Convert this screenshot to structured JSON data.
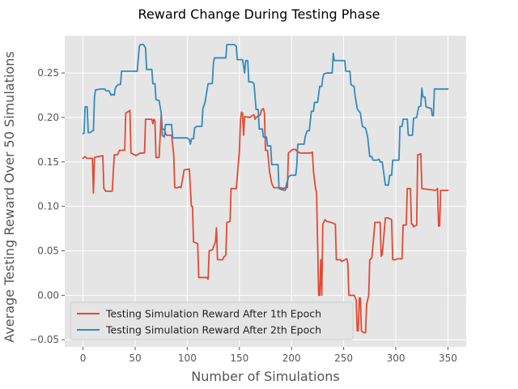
{
  "chart_data": {
    "type": "line",
    "title": "Reward Change During Testing Phase",
    "xlabel": "Number of Simulations",
    "ylabel": "Average Testing Reward Over 50 Simulations",
    "xlim": [
      -17.5,
      367.5
    ],
    "ylim": [
      -0.058,
      0.292
    ],
    "xticks": [
      0,
      50,
      100,
      150,
      200,
      250,
      300,
      350
    ],
    "yticks": [
      -0.05,
      0.0,
      0.05,
      0.1,
      0.15,
      0.2,
      0.25
    ],
    "ytick_labels": [
      "−0.05",
      "0.00",
      "0.05",
      "0.10",
      "0.15",
      "0.20",
      "0.25"
    ],
    "grid": true,
    "background": "#e5e5e5",
    "legend_position": "lower-left",
    "series": [
      {
        "name": "Testing Simulation Reward After 1th Epoch",
        "color": "#e24a33",
        "points": [
          [
            0,
            0.154
          ],
          [
            2,
            0.156
          ],
          [
            4,
            0.154
          ],
          [
            9,
            0.154
          ],
          [
            10,
            0.115
          ],
          [
            11,
            0.155
          ],
          [
            14,
            0.156
          ],
          [
            19,
            0.157
          ],
          [
            20,
            0.12
          ],
          [
            22,
            0.117
          ],
          [
            28,
            0.117
          ],
          [
            30,
            0.158
          ],
          [
            33,
            0.158
          ],
          [
            35,
            0.163
          ],
          [
            40,
            0.163
          ],
          [
            41,
            0.205
          ],
          [
            44,
            0.207
          ],
          [
            45,
            0.208
          ],
          [
            46,
            0.16
          ],
          [
            51,
            0.157
          ],
          [
            52,
            0.158
          ],
          [
            55,
            0.16
          ],
          [
            59,
            0.16
          ],
          [
            60,
            0.198
          ],
          [
            66,
            0.198
          ],
          [
            67,
            0.193
          ],
          [
            68,
            0.198
          ],
          [
            69,
            0.196
          ],
          [
            70,
            0.155
          ],
          [
            73,
            0.155
          ],
          [
            75,
            0.203
          ],
          [
            76,
            0.188
          ],
          [
            78,
            0.186
          ],
          [
            80,
            0.18
          ],
          [
            85,
            0.18
          ],
          [
            87,
            0.158
          ],
          [
            88,
            0.121
          ],
          [
            91,
            0.121
          ],
          [
            92,
            0.122
          ],
          [
            94,
            0.121
          ],
          [
            97,
            0.141
          ],
          [
            102,
            0.142
          ],
          [
            103,
            0.12
          ],
          [
            104,
            0.1
          ],
          [
            105,
            0.1
          ],
          [
            106,
            0.06
          ],
          [
            110,
            0.058
          ],
          [
            111,
            0.02
          ],
          [
            113,
            0.02
          ],
          [
            119,
            0.02
          ],
          [
            120,
            0.018
          ],
          [
            121,
            0.05
          ],
          [
            124,
            0.051
          ],
          [
            127,
            0.06
          ],
          [
            128,
            0.076
          ],
          [
            129,
            0.04
          ],
          [
            134,
            0.04
          ],
          [
            135,
            0.043
          ],
          [
            137,
            0.045
          ],
          [
            138,
            0.082
          ],
          [
            141,
            0.083
          ],
          [
            142,
            0.12
          ],
          [
            147,
            0.12
          ],
          [
            150,
            0.162
          ],
          [
            151,
            0.197
          ],
          [
            152,
            0.206
          ],
          [
            153,
            0.205
          ],
          [
            154,
            0.18
          ],
          [
            155,
            0.201
          ],
          [
            160,
            0.2
          ],
          [
            161,
            0.201
          ],
          [
            164,
            0.203
          ],
          [
            165,
            0.198
          ],
          [
            166,
            0.2
          ],
          [
            170,
            0.203
          ],
          [
            171,
            0.208
          ],
          [
            173,
            0.21
          ],
          [
            174,
            0.205
          ],
          [
            175,
            0.163
          ],
          [
            177,
            0.163
          ],
          [
            179,
            0.138
          ],
          [
            181,
            0.126
          ],
          [
            183,
            0.121
          ],
          [
            190,
            0.121
          ],
          [
            192,
            0.12
          ],
          [
            194,
            0.121
          ],
          [
            196,
            0.121
          ],
          [
            197,
            0.16
          ],
          [
            199,
            0.162
          ],
          [
            201,
            0.164
          ],
          [
            204,
            0.164
          ],
          [
            205,
            0.162
          ],
          [
            208,
            0.16
          ],
          [
            218,
            0.16
          ],
          [
            220,
            0.161
          ],
          [
            221,
            0.14
          ],
          [
            223,
            0.12
          ],
          [
            224,
            0.116
          ],
          [
            226,
            0.0
          ],
          [
            227,
            0.0
          ],
          [
            228,
            0.04
          ],
          [
            229,
            0.0
          ],
          [
            230,
            0.08
          ],
          [
            232,
            0.085
          ],
          [
            234,
            0.083
          ],
          [
            238,
            0.082
          ],
          [
            242,
            0.08
          ],
          [
            243,
            0.04
          ],
          [
            247,
            0.04
          ],
          [
            248,
            0.038
          ],
          [
            251,
            0.04
          ],
          [
            253,
            0.041
          ],
          [
            254,
            0.036
          ],
          [
            255,
            0.0
          ],
          [
            259,
            0.0
          ],
          [
            260,
            0.0
          ],
          [
            262,
            -0.005
          ],
          [
            263,
            -0.04
          ],
          [
            264,
            -0.04
          ],
          [
            265,
            -0.003
          ],
          [
            266,
            -0.003
          ],
          [
            267,
            -0.04
          ],
          [
            269,
            -0.042
          ],
          [
            271,
            -0.042
          ],
          [
            272,
            -0.01
          ],
          [
            274,
            0.0
          ],
          [
            275,
            0.04
          ],
          [
            277,
            0.042
          ],
          [
            280,
            0.082
          ],
          [
            285,
            0.082
          ],
          [
            286,
            0.044
          ],
          [
            287,
            0.046
          ],
          [
            290,
            0.087
          ],
          [
            293,
            0.087
          ],
          [
            296,
            0.085
          ],
          [
            297,
            0.04
          ],
          [
            300,
            0.04
          ],
          [
            301,
            0.041
          ],
          [
            306,
            0.041
          ],
          [
            307,
            0.079
          ],
          [
            310,
            0.079
          ],
          [
            311,
            0.12
          ],
          [
            314,
            0.12
          ],
          [
            315,
            0.08
          ],
          [
            316,
            0.08
          ],
          [
            317,
            0.077
          ],
          [
            320,
            0.079
          ],
          [
            321,
            0.158
          ],
          [
            324,
            0.159
          ],
          [
            325,
            0.12
          ],
          [
            338,
            0.118
          ],
          [
            340,
            0.12
          ],
          [
            341,
            0.078
          ],
          [
            342,
            0.078
          ],
          [
            343,
            0.118
          ],
          [
            350,
            0.118
          ]
        ]
      },
      {
        "name": "Testing Simulation Reward After 2th Epoch",
        "color": "#348abd",
        "points": [
          [
            0,
            0.182
          ],
          [
            1,
            0.182
          ],
          [
            2,
            0.212
          ],
          [
            4,
            0.212
          ],
          [
            5,
            0.183
          ],
          [
            7,
            0.183
          ],
          [
            9,
            0.185
          ],
          [
            10,
            0.185
          ],
          [
            11,
            0.223
          ],
          [
            12,
            0.231
          ],
          [
            17,
            0.232
          ],
          [
            21,
            0.232
          ],
          [
            22,
            0.23
          ],
          [
            25,
            0.23
          ],
          [
            27,
            0.225
          ],
          [
            28,
            0.226
          ],
          [
            30,
            0.225
          ],
          [
            31,
            0.233
          ],
          [
            32,
            0.235
          ],
          [
            34,
            0.237
          ],
          [
            36,
            0.237
          ],
          [
            37,
            0.252
          ],
          [
            44,
            0.252
          ],
          [
            51,
            0.252
          ],
          [
            52,
            0.252
          ],
          [
            54,
            0.28
          ],
          [
            55,
            0.282
          ],
          [
            58,
            0.282
          ],
          [
            59,
            0.28
          ],
          [
            60,
            0.278
          ],
          [
            61,
            0.254
          ],
          [
            66,
            0.254
          ],
          [
            67,
            0.238
          ],
          [
            69,
            0.238
          ],
          [
            70,
            0.22
          ],
          [
            73,
            0.219
          ],
          [
            75,
            0.205
          ],
          [
            76,
            0.18
          ],
          [
            78,
            0.178
          ],
          [
            79,
            0.192
          ],
          [
            85,
            0.192
          ],
          [
            86,
            0.177
          ],
          [
            100,
            0.177
          ],
          [
            102,
            0.175
          ],
          [
            103,
            0.17
          ],
          [
            104,
            0.176
          ],
          [
            106,
            0.176
          ],
          [
            107,
            0.188
          ],
          [
            109,
            0.19
          ],
          [
            114,
            0.19
          ],
          [
            115,
            0.21
          ],
          [
            117,
            0.217
          ],
          [
            120,
            0.238
          ],
          [
            124,
            0.238
          ],
          [
            125,
            0.26
          ],
          [
            126,
            0.267
          ],
          [
            130,
            0.267
          ],
          [
            137,
            0.267
          ],
          [
            138,
            0.282
          ],
          [
            145,
            0.282
          ],
          [
            147,
            0.28
          ],
          [
            148,
            0.265
          ],
          [
            150,
            0.265
          ],
          [
            153,
            0.265
          ],
          [
            155,
            0.25
          ],
          [
            156,
            0.264
          ],
          [
            158,
            0.264
          ],
          [
            159,
            0.24
          ],
          [
            162,
            0.24
          ],
          [
            164,
            0.238
          ],
          [
            166,
            0.209
          ],
          [
            168,
            0.209
          ],
          [
            169,
            0.187
          ],
          [
            172,
            0.187
          ],
          [
            173,
            0.178
          ],
          [
            176,
            0.178
          ],
          [
            177,
            0.168
          ],
          [
            180,
            0.168
          ],
          [
            181,
            0.147
          ],
          [
            184,
            0.147
          ],
          [
            187,
            0.147
          ],
          [
            188,
            0.12
          ],
          [
            190,
            0.119
          ],
          [
            194,
            0.118
          ],
          [
            195,
            0.124
          ],
          [
            197,
            0.133
          ],
          [
            199,
            0.135
          ],
          [
            204,
            0.135
          ],
          [
            205,
            0.145
          ],
          [
            206,
            0.17
          ],
          [
            212,
            0.17
          ],
          [
            213,
            0.178
          ],
          [
            215,
            0.185
          ],
          [
            217,
            0.185
          ],
          [
            219,
            0.207
          ],
          [
            221,
            0.207
          ],
          [
            222,
            0.217
          ],
          [
            225,
            0.217
          ],
          [
            227,
            0.235
          ],
          [
            229,
            0.235
          ],
          [
            230,
            0.245
          ],
          [
            231,
            0.249
          ],
          [
            234,
            0.25
          ],
          [
            239,
            0.25
          ],
          [
            240,
            0.272
          ],
          [
            241,
            0.264
          ],
          [
            247,
            0.264
          ],
          [
            250,
            0.264
          ],
          [
            251,
            0.264
          ],
          [
            252,
            0.252
          ],
          [
            256,
            0.252
          ],
          [
            257,
            0.237
          ],
          [
            258,
            0.236
          ],
          [
            260,
            0.235
          ],
          [
            261,
            0.224
          ],
          [
            262,
            0.217
          ],
          [
            263,
            0.21
          ],
          [
            264,
            0.208
          ],
          [
            266,
            0.205
          ],
          [
            267,
            0.197
          ],
          [
            268,
            0.19
          ],
          [
            271,
            0.188
          ],
          [
            273,
            0.178
          ],
          [
            274,
            0.167
          ],
          [
            275,
            0.156
          ],
          [
            277,
            0.156
          ],
          [
            278,
            0.152
          ],
          [
            282,
            0.152
          ],
          [
            284,
            0.153
          ],
          [
            285,
            0.15
          ],
          [
            287,
            0.15
          ],
          [
            290,
            0.124
          ],
          [
            293,
            0.124
          ],
          [
            294,
            0.135
          ],
          [
            296,
            0.135
          ],
          [
            297,
            0.152
          ],
          [
            303,
            0.152
          ],
          [
            304,
            0.19
          ],
          [
            306,
            0.19
          ],
          [
            307,
            0.198
          ],
          [
            311,
            0.198
          ],
          [
            312,
            0.18
          ],
          [
            316,
            0.18
          ],
          [
            317,
            0.199
          ],
          [
            320,
            0.2
          ],
          [
            322,
            0.212
          ],
          [
            324,
            0.213
          ],
          [
            325,
            0.233
          ],
          [
            326,
            0.223
          ],
          [
            328,
            0.223
          ],
          [
            329,
            0.212
          ],
          [
            334,
            0.21
          ],
          [
            335,
            0.202
          ],
          [
            336,
            0.202
          ],
          [
            337,
            0.232
          ],
          [
            340,
            0.232
          ],
          [
            350,
            0.232
          ]
        ]
      }
    ]
  }
}
